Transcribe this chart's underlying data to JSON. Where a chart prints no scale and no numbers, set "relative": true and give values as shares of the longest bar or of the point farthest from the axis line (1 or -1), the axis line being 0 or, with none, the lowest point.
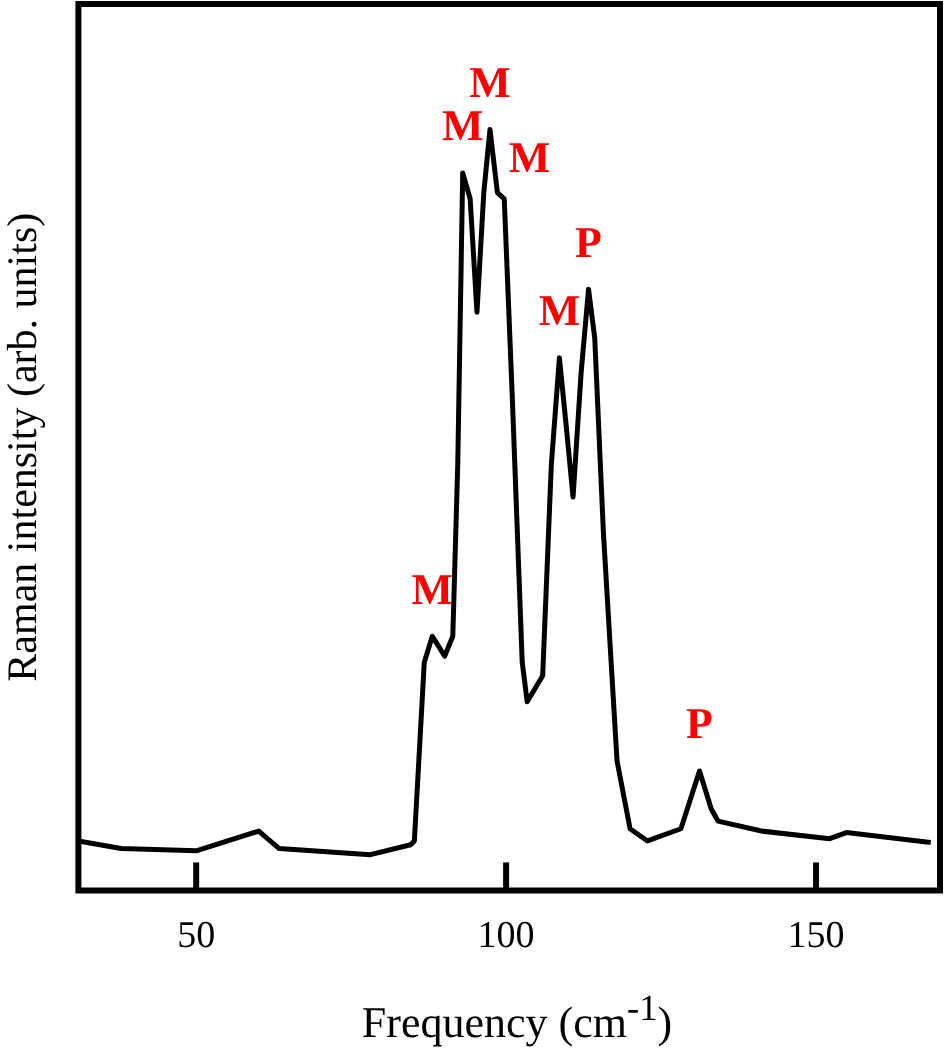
{
  "chart_data": {
    "type": "line",
    "xlabel": "Frequency (cm$^{-1}$)",
    "ylabel": "Raman intensity (arb. units)",
    "relative": true,
    "xlim": [
      31,
      170
    ],
    "xticks": [
      50,
      100,
      150
    ],
    "grid": false,
    "legend": false,
    "marker": "none",
    "line_style": "solid",
    "x": [
      31,
      37.9,
      50,
      60.1,
      63.4,
      78.1,
      84.6,
      85.2,
      86.8,
      88.1,
      90.1,
      91.4,
      92.2,
      93.0,
      94.2,
      95.3,
      96.4,
      97.4,
      98.6,
      99.7,
      101.0,
      102.6,
      103.4,
      105.9,
      107.3,
      108.6,
      109.7,
      110.8,
      112.1,
      113.3,
      114.3,
      115.7,
      117.9,
      120.0,
      122.8,
      128.2,
      131.2,
      133.1,
      134.2,
      141.2,
      152.2,
      154.9,
      168.5
    ],
    "series": [
      {
        "color": "#000000",
        "values": [
          0.065,
          0.055,
          0.052,
          0.078,
          0.055,
          0.047,
          0.06,
          0.065,
          0.3,
          0.334,
          0.308,
          0.334,
          0.56,
          0.943,
          0.909,
          0.76,
          0.917,
          1.0,
          0.917,
          0.909,
          0.648,
          0.3,
          0.248,
          0.282,
          0.56,
          0.7,
          0.61,
          0.517,
          0.68,
          0.79,
          0.726,
          0.47,
          0.17,
          0.081,
          0.065,
          0.081,
          0.157,
          0.107,
          0.091,
          0.078,
          0.068,
          0.076,
          0.063
        ]
      }
    ],
    "annotations": [
      {
        "text": "M",
        "x": 88.1,
        "y": 0.334
      },
      {
        "text": "M",
        "x": 93.0,
        "y": 0.943
      },
      {
        "text": "M",
        "x": 97.4,
        "y": 1.0
      },
      {
        "text": "M",
        "x": 98.6,
        "y": 0.917
      },
      {
        "text": "M",
        "x": 108.6,
        "y": 0.7
      },
      {
        "text": "P",
        "x": 113.3,
        "y": 0.79
      },
      {
        "text": "P",
        "x": 131.2,
        "y": 0.157
      }
    ]
  }
}
